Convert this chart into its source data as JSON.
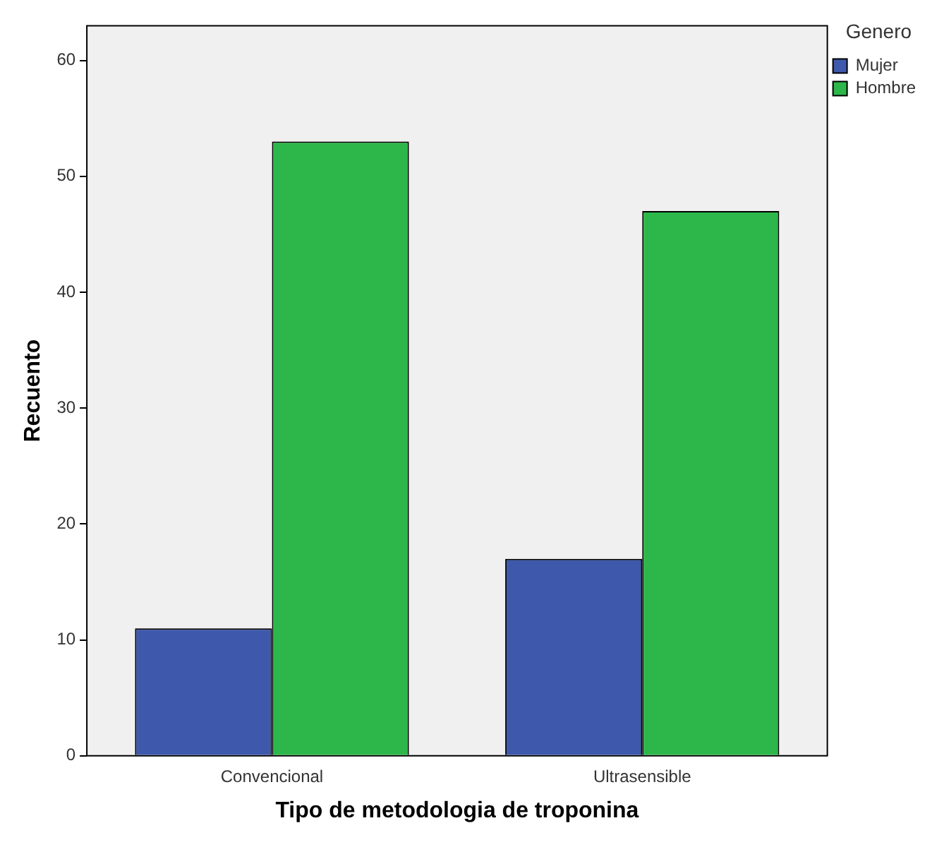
{
  "chart_data": {
    "type": "bar",
    "xlabel": "Tipo de metodologia de troponina",
    "ylabel": "Recuento",
    "legend_title": "Genero",
    "categories": [
      "Convencional",
      "Ultrasensible"
    ],
    "series": [
      {
        "name": "Mujer",
        "color": "#3e58ac",
        "values": [
          11,
          17
        ]
      },
      {
        "name": "Hombre",
        "color": "#2db74a",
        "values": [
          53,
          47
        ]
      }
    ],
    "ylim": [
      0,
      63
    ],
    "yticks": [
      0,
      10,
      20,
      30,
      40,
      50,
      60
    ],
    "grid": false,
    "legend": "top right"
  }
}
